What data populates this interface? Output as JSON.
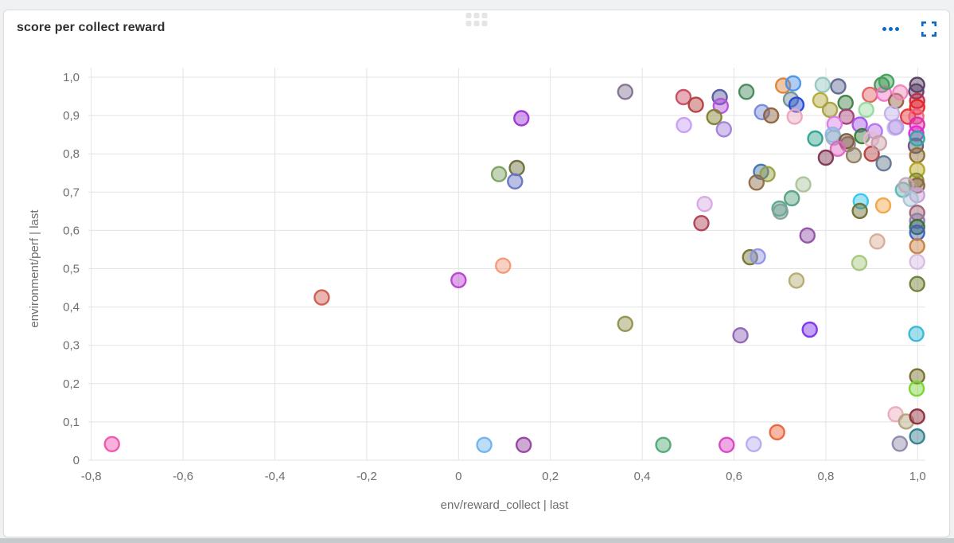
{
  "panel": {
    "title": "score per collect reward",
    "accent_color": "#0d69c5",
    "icons": [
      "drag-handle",
      "ellipsis-menu",
      "fullscreen-expand"
    ]
  },
  "chart_data": {
    "type": "scatter",
    "title": "score per collect reward",
    "xlabel": "env/reward_collect | last",
    "ylabel": "environment/perf | last",
    "xlim": [
      -0.85,
      1.05
    ],
    "ylim": [
      0,
      1.0
    ],
    "grid": true,
    "legend": "none",
    "x_ticks": [
      -0.8,
      -0.6,
      -0.4,
      -0.2,
      0,
      0.2,
      0.4,
      0.6,
      0.8,
      1.0
    ],
    "x_tick_labels": [
      "-0,8",
      "-0,6",
      "-0,4",
      "-0,2",
      "0",
      "0,2",
      "0,4",
      "0,6",
      "0,8",
      "1,0"
    ],
    "y_ticks": [
      0,
      0.1,
      0.2,
      0.3,
      0.4,
      0.5,
      0.6,
      0.7,
      0.8,
      0.9,
      1.0
    ],
    "y_tick_labels": [
      "0",
      "0,1",
      "0,2",
      "0,3",
      "0,4",
      "0,5",
      "0,6",
      "0,7",
      "0,8",
      "0,9",
      "1,0"
    ],
    "points": [
      [
        -0.755,
        0.042,
        "#f052ad"
      ],
      [
        -0.298,
        0.425,
        "#cd5a4e"
      ],
      [
        0.0,
        0.47,
        "#b93fd1"
      ],
      [
        0.097,
        0.508,
        "#f29877"
      ],
      [
        0.088,
        0.747,
        "#79a05f"
      ],
      [
        0.127,
        0.763,
        "#6c6e3b"
      ],
      [
        0.123,
        0.728,
        "#6673c5"
      ],
      [
        0.137,
        0.893,
        "#9c30d5"
      ],
      [
        0.363,
        0.962,
        "#817092"
      ],
      [
        0.363,
        0.356,
        "#90904e"
      ],
      [
        0.056,
        0.04,
        "#6cb2ee"
      ],
      [
        0.142,
        0.04,
        "#93419f"
      ],
      [
        0.446,
        0.04,
        "#4fa873"
      ],
      [
        0.584,
        0.04,
        "#d940c4"
      ],
      [
        0.643,
        0.042,
        "#b7aaf0"
      ],
      [
        0.694,
        0.073,
        "#ec6238"
      ],
      [
        0.49,
        0.948,
        "#c74b62"
      ],
      [
        0.517,
        0.928,
        "#b23e3e"
      ],
      [
        0.569,
        0.948,
        "#565a9e"
      ],
      [
        0.571,
        0.925,
        "#b84fdd"
      ],
      [
        0.557,
        0.896,
        "#80802c"
      ],
      [
        0.491,
        0.875,
        "#c89df5"
      ],
      [
        0.578,
        0.864,
        "#a27fd9"
      ],
      [
        0.627,
        0.962,
        "#42875a"
      ],
      [
        0.707,
        0.978,
        "#db8236"
      ],
      [
        0.729,
        0.984,
        "#4a90e8"
      ],
      [
        0.724,
        0.942,
        "#6f8f96"
      ],
      [
        0.736,
        0.928,
        "#2148d8"
      ],
      [
        0.661,
        0.909,
        "#7388da"
      ],
      [
        0.681,
        0.9,
        "#8f6038"
      ],
      [
        0.732,
        0.897,
        "#eba4bc"
      ],
      [
        0.659,
        0.753,
        "#3f74ad"
      ],
      [
        0.673,
        0.747,
        "#97a03c"
      ],
      [
        0.649,
        0.725,
        "#8f6a45"
      ],
      [
        0.751,
        0.72,
        "#a9c398"
      ],
      [
        0.726,
        0.684,
        "#55a181"
      ],
      [
        0.699,
        0.657,
        "#5ca88b"
      ],
      [
        0.536,
        0.669,
        "#d6a9e3"
      ],
      [
        0.529,
        0.619,
        "#ad3e52"
      ],
      [
        0.701,
        0.649,
        "#7fa19b"
      ],
      [
        0.76,
        0.587,
        "#8e4fa5"
      ],
      [
        0.635,
        0.53,
        "#747436"
      ],
      [
        0.652,
        0.532,
        "#8e94e4"
      ],
      [
        0.736,
        0.469,
        "#b3ab6e"
      ],
      [
        0.614,
        0.326,
        "#8d62b5"
      ],
      [
        0.765,
        0.341,
        "#7d31e8"
      ],
      [
        0.793,
        0.98,
        "#93c6c0"
      ],
      [
        0.827,
        0.976,
        "#5e6890"
      ],
      [
        0.788,
        0.94,
        "#b3aa3a"
      ],
      [
        0.843,
        0.933,
        "#3d8045"
      ],
      [
        0.809,
        0.915,
        "#a8a040"
      ],
      [
        0.922,
        0.98,
        "#46935a"
      ],
      [
        0.896,
        0.954,
        "#e36060"
      ],
      [
        0.927,
        0.957,
        "#f271c8"
      ],
      [
        0.953,
        0.938,
        "#906040"
      ],
      [
        0.845,
        0.897,
        "#a33e75"
      ],
      [
        0.888,
        0.915,
        "#94d99e"
      ],
      [
        0.979,
        0.897,
        "#e63434"
      ],
      [
        0.944,
        0.905,
        "#c2b0ea"
      ],
      [
        0.819,
        0.878,
        "#da7de4"
      ],
      [
        0.874,
        0.876,
        "#a453e6"
      ],
      [
        0.815,
        0.85,
        "#8db6ec"
      ],
      [
        0.879,
        0.846,
        "#2f7d32"
      ],
      [
        0.907,
        0.859,
        "#b371ec"
      ],
      [
        0.95,
        0.868,
        "#cfbaf2"
      ],
      [
        0.777,
        0.84,
        "#2fa18e"
      ],
      [
        0.817,
        0.842,
        "#9db3c6"
      ],
      [
        0.848,
        0.825,
        "#a17e8e"
      ],
      [
        0.845,
        0.833,
        "#7a5c3a"
      ],
      [
        0.826,
        0.813,
        "#e363c4"
      ],
      [
        0.899,
        0.838,
        "#ebb7cc"
      ],
      [
        0.8,
        0.79,
        "#7d3450"
      ],
      [
        0.861,
        0.796,
        "#8f7e60"
      ],
      [
        0.9,
        0.8,
        "#b53c3c"
      ],
      [
        0.916,
        0.828,
        "#c79ea9"
      ],
      [
        0.926,
        0.775,
        "#60758f"
      ],
      [
        0.932,
        0.988,
        "#3fa058"
      ],
      [
        0.962,
        0.96,
        "#f283bb"
      ],
      [
        0.953,
        0.87,
        "#b69ce4"
      ],
      [
        0.876,
        0.676,
        "#32c6ec"
      ],
      [
        0.925,
        0.665,
        "#f2a444"
      ],
      [
        0.874,
        0.651,
        "#6f6f30"
      ],
      [
        0.912,
        0.571,
        "#d6ab93"
      ],
      [
        0.873,
        0.515,
        "#a3c67b"
      ],
      [
        0.999,
        0.98,
        "#523c60"
      ],
      [
        0.997,
        0.963,
        "#5e3d69"
      ],
      [
        0.999,
        0.938,
        "#c62a48"
      ],
      [
        0.999,
        0.922,
        "#ea2222"
      ],
      [
        0.997,
        0.897,
        "#eb6080"
      ],
      [
        0.999,
        0.876,
        "#d92cab"
      ],
      [
        0.997,
        0.853,
        "#e322d4"
      ],
      [
        0.996,
        0.821,
        "#6e527e"
      ],
      [
        0.999,
        0.84,
        "#2da89e"
      ],
      [
        0.999,
        0.796,
        "#8d6e30"
      ],
      [
        0.999,
        0.758,
        "#b3a31a"
      ],
      [
        0.997,
        0.73,
        "#7d8d2a"
      ],
      [
        0.999,
        0.717,
        "#8d5f4a"
      ],
      [
        0.968,
        0.706,
        "#5db6b3"
      ],
      [
        0.975,
        0.718,
        "#c4a8b8"
      ],
      [
        0.999,
        0.692,
        "#c69dd6"
      ],
      [
        0.985,
        0.682,
        "#a8c4d4"
      ],
      [
        0.999,
        0.646,
        "#a16074"
      ],
      [
        0.999,
        0.625,
        "#8d7da1"
      ],
      [
        0.999,
        0.609,
        "#2f6e3d"
      ],
      [
        0.999,
        0.594,
        "#3d5fb3"
      ],
      [
        0.999,
        0.559,
        "#c67d3d"
      ],
      [
        0.999,
        0.518,
        "#d6bae3"
      ],
      [
        0.999,
        0.46,
        "#6e7d30"
      ],
      [
        0.997,
        0.33,
        "#32b6d6"
      ],
      [
        0.999,
        0.219,
        "#746e2a"
      ],
      [
        0.998,
        0.187,
        "#78d432"
      ],
      [
        0.952,
        0.12,
        "#eaabbb"
      ],
      [
        0.975,
        0.101,
        "#b3a37b"
      ],
      [
        0.999,
        0.114,
        "#8d2a3a"
      ],
      [
        0.999,
        0.062,
        "#2f7d8d"
      ],
      [
        0.961,
        0.043,
        "#8d87ab"
      ]
    ]
  }
}
